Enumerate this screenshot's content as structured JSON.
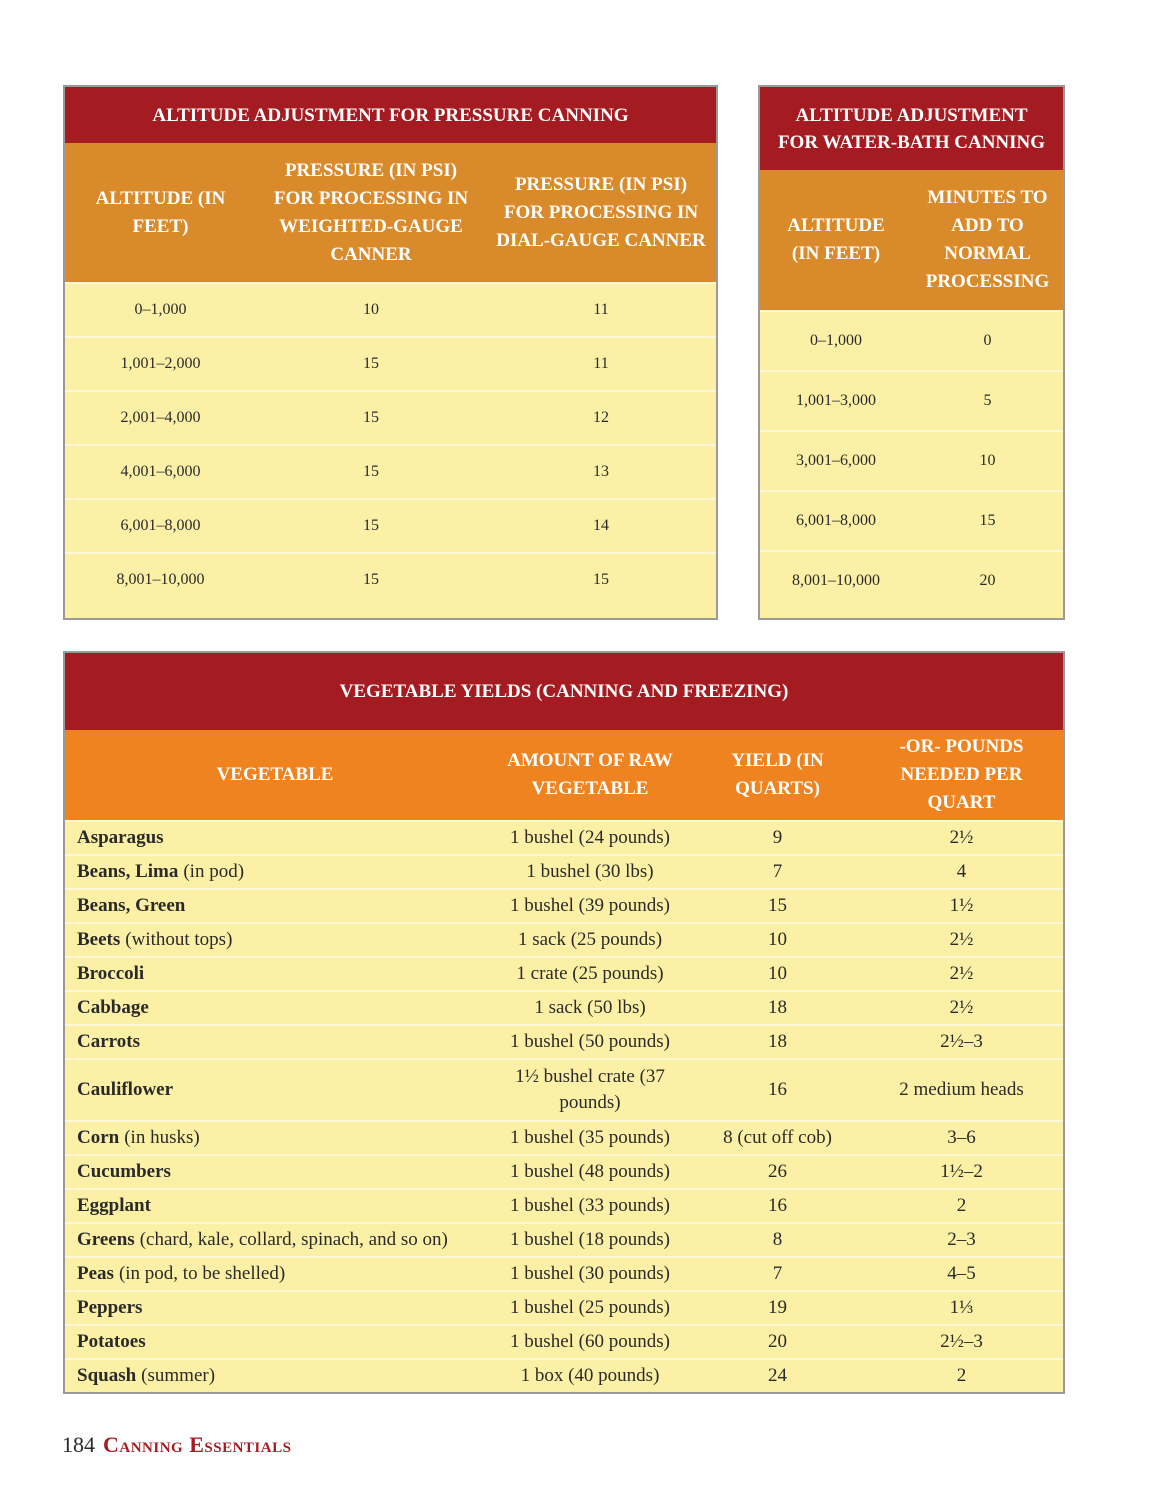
{
  "pressure": {
    "title": "ALTITUDE ADJUSTMENT FOR PRESSURE CANNING",
    "headers": [
      "ALTITUDE (IN FEET)",
      "PRESSURE (IN PSI) FOR PROCESSING IN WEIGHTED-GAUGE CANNER",
      "PRESSURE (IN PSI) FOR PROCESSING IN DIAL-GAUGE CANNER"
    ],
    "rows": [
      [
        "0–1,000",
        "10",
        "11"
      ],
      [
        "1,001–2,000",
        "15",
        "11"
      ],
      [
        "2,001–4,000",
        "15",
        "12"
      ],
      [
        "4,001–6,000",
        "15",
        "13"
      ],
      [
        "6,001–8,000",
        "15",
        "14"
      ],
      [
        "8,001–10,000",
        "15",
        "15"
      ]
    ]
  },
  "waterbath": {
    "title": "ALTITUDE ADJUSTMENT FOR WATER-BATH CANNING",
    "headers": [
      "ALTITUDE (IN FEET)",
      "MINUTES TO ADD TO NORMAL PROCESSING"
    ],
    "rows": [
      [
        "0–1,000",
        "0"
      ],
      [
        "1,001–3,000",
        "5"
      ],
      [
        "3,001–6,000",
        "10"
      ],
      [
        "6,001–8,000",
        "15"
      ],
      [
        "8,001–10,000",
        "20"
      ]
    ]
  },
  "yields": {
    "title": "VEGETABLE YIELDS (CANNING AND FREEZING)",
    "headers": [
      "VEGETABLE",
      "AMOUNT OF RAW VEGETABLE",
      "YIELD (IN QUARTS)",
      "-OR- POUNDS NEEDED PER QUART"
    ],
    "rows": [
      {
        "name": "Asparagus",
        "note": "",
        "amount": "1 bushel (24 pounds)",
        "yield": "9",
        "pounds": "2½"
      },
      {
        "name": "Beans, Lima",
        "note": "(in pod)",
        "amount": "1 bushel (30 lbs)",
        "yield": "7",
        "pounds": "4"
      },
      {
        "name": "Beans, Green",
        "note": "",
        "amount": "1 bushel (39 pounds)",
        "yield": "15",
        "pounds": "1½"
      },
      {
        "name": "Beets",
        "note": "(without tops)",
        "amount": "1 sack (25 pounds)",
        "yield": "10",
        "pounds": "2½"
      },
      {
        "name": "Broccoli",
        "note": "",
        "amount": "1 crate (25 pounds)",
        "yield": "10",
        "pounds": "2½"
      },
      {
        "name": "Cabbage",
        "note": "",
        "amount": "1 sack (50 lbs)",
        "yield": "18",
        "pounds": "2½"
      },
      {
        "name": "Carrots",
        "note": "",
        "amount": "1 bushel (50 pounds)",
        "yield": "18",
        "pounds": "2½–3"
      },
      {
        "name": "Cauliflower",
        "note": "",
        "amount": "1½ bushel crate (37 pounds)",
        "yield": "16",
        "pounds": "2 medium heads"
      },
      {
        "name": "Corn",
        "note": "(in husks)",
        "amount": "1 bushel (35 pounds)",
        "yield": "8 (cut off cob)",
        "pounds": "3–6"
      },
      {
        "name": "Cucumbers",
        "note": "",
        "amount": "1 bushel (48 pounds)",
        "yield": "26",
        "pounds": "1½–2"
      },
      {
        "name": "Eggplant",
        "note": "",
        "amount": "1 bushel (33 pounds)",
        "yield": "16",
        "pounds": "2"
      },
      {
        "name": "Greens",
        "note": "(chard, kale, collard, spinach, and so on)",
        "amount": "1 bushel (18 pounds)",
        "yield": "8",
        "pounds": "2–3"
      },
      {
        "name": "Peas",
        "note": "(in pod, to be shelled)",
        "amount": "1 bushel (30 pounds)",
        "yield": "7",
        "pounds": "4–5"
      },
      {
        "name": "Peppers",
        "note": "",
        "amount": "1 bushel (25 pounds)",
        "yield": "19",
        "pounds": "1⅓"
      },
      {
        "name": "Potatoes",
        "note": "",
        "amount": "1 bushel (60 pounds)",
        "yield": "20",
        "pounds": "2½–3"
      },
      {
        "name": "Squash",
        "note": "(summer)",
        "amount": "1 box (40 pounds)",
        "yield": "24",
        "pounds": "2"
      }
    ]
  },
  "footer": {
    "page": "184",
    "section": "Canning Essentials"
  },
  "colors": {
    "title": "#a41c21",
    "header_top": "#d98a2a",
    "header_veg": "#ef8320",
    "body": "#fbf0a6"
  }
}
